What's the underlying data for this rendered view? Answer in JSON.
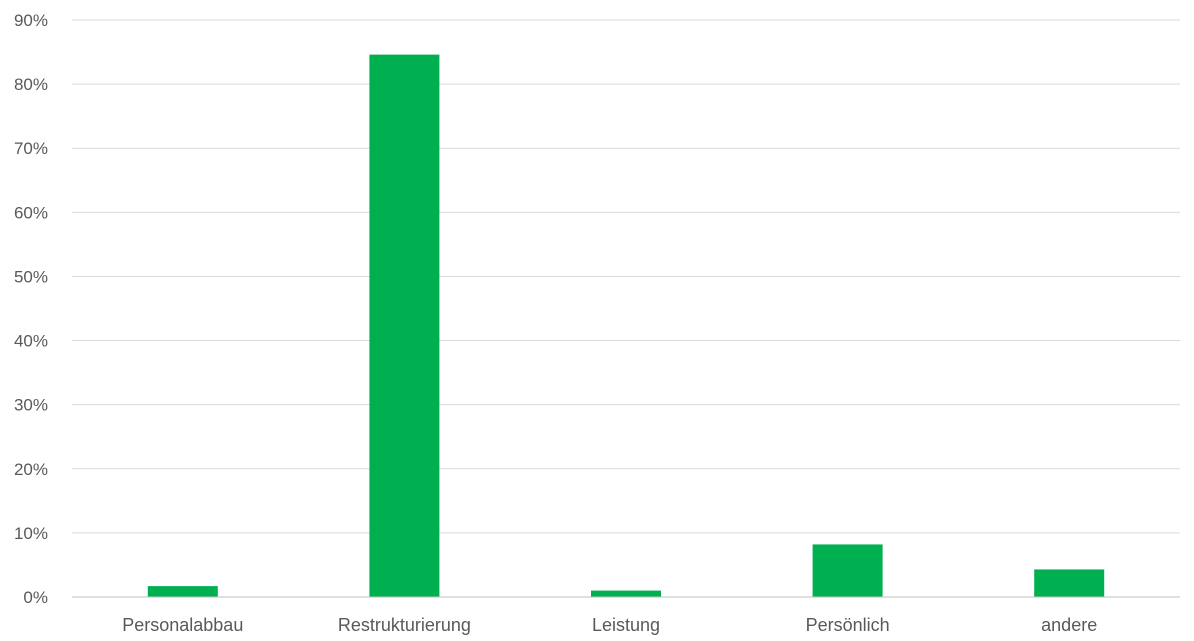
{
  "chart_data": {
    "type": "bar",
    "categories": [
      "Personalabbau",
      "Restrukturierung",
      "Leistung",
      "Persönlich",
      "andere"
    ],
    "values": [
      1.7,
      84.6,
      1.0,
      8.2,
      4.3
    ],
    "title": "",
    "xlabel": "",
    "ylabel": "",
    "ylim": [
      0,
      90
    ],
    "yticks": [
      "0%",
      "10%",
      "20%",
      "30%",
      "40%",
      "50%",
      "60%",
      "70%",
      "80%",
      "90%"
    ],
    "grid": true,
    "legend": "none",
    "bar_color": "#00b050"
  }
}
